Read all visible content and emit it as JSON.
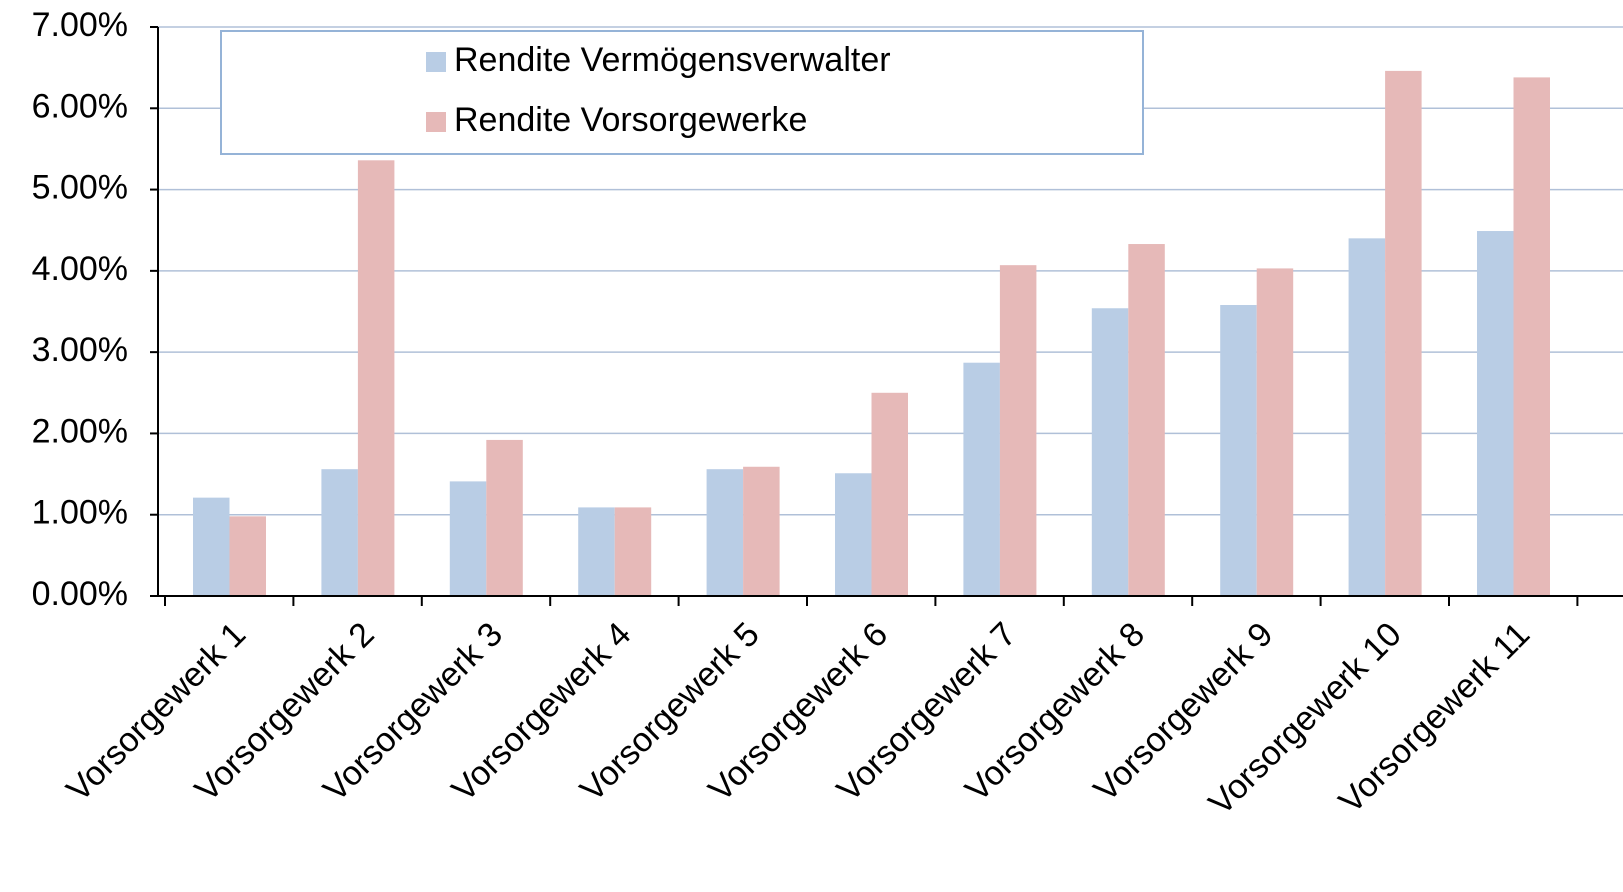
{
  "chart_data": {
    "type": "bar",
    "categories": [
      "Vorsorgewerk 1",
      "Vorsorgewerk 2",
      "Vorsorgewerk 3",
      "Vorsorgewerk 4",
      "Vorsorgewerk 5",
      "Vorsorgewerk 6",
      "Vorsorgewerk 7",
      "Vorsorgewerk 8",
      "Vorsorgewerk 9",
      "Vorsorgewerk 10",
      "Vorsorgewerk 11"
    ],
    "series": [
      {
        "name": "Rendite Vermögensverwalter",
        "color": "#b9cde5",
        "values": [
          1.21,
          1.56,
          1.41,
          1.09,
          1.56,
          1.51,
          2.87,
          3.54,
          3.58,
          4.4,
          4.49
        ]
      },
      {
        "name": "Rendite Vorsorgewerke",
        "color": "#e6b9b8",
        "values": [
          0.98,
          5.36,
          1.92,
          1.09,
          1.59,
          2.5,
          4.07,
          4.33,
          4.03,
          6.46,
          6.38
        ]
      }
    ],
    "ylim": [
      0,
      7
    ],
    "yticks": [
      {
        "value": 0,
        "label": "0.00%"
      },
      {
        "value": 1,
        "label": "1.00%"
      },
      {
        "value": 2,
        "label": "2.00%"
      },
      {
        "value": 3,
        "label": "3.00%"
      },
      {
        "value": 4,
        "label": "4.00%"
      },
      {
        "value": 5,
        "label": "5.00%"
      },
      {
        "value": 6,
        "label": "6.00%"
      },
      {
        "value": 7,
        "label": "7.00%"
      }
    ],
    "grid": true
  }
}
